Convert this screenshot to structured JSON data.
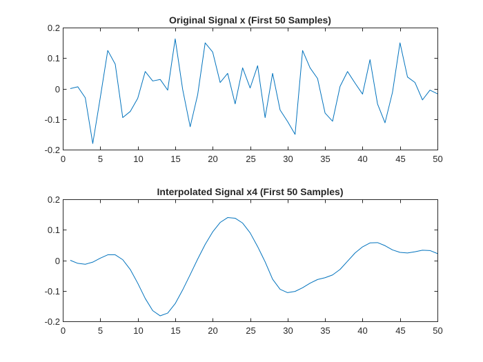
{
  "chart_data": [
    {
      "type": "line",
      "title": "Original Signal x (First 50 Samples)",
      "xlabel": "",
      "ylabel": "",
      "xlim": [
        0,
        50
      ],
      "ylim": [
        -0.2,
        0.2
      ],
      "xticks": [
        0,
        5,
        10,
        15,
        20,
        25,
        30,
        35,
        40,
        45,
        50
      ],
      "yticks": [
        -0.2,
        -0.1,
        0,
        0.1,
        0.2
      ],
      "ytick_labels": [
        "-0.2",
        "-0.1",
        "0",
        "0.1",
        "0.2"
      ],
      "grid": false,
      "color": "#0072BD",
      "series": [
        {
          "x": [
            1,
            2,
            3,
            4,
            5,
            6,
            7,
            8,
            9,
            10,
            11,
            12,
            13,
            14,
            15,
            16,
            17,
            18,
            19,
            20,
            21,
            22,
            23,
            24,
            25,
            26,
            27,
            28,
            29,
            30,
            31,
            32,
            33,
            34,
            35,
            36,
            37,
            38,
            39,
            40,
            41,
            42,
            43,
            44,
            45,
            46,
            47,
            48,
            49,
            50
          ],
          "values": [
            0.0,
            0.006,
            -0.03,
            -0.18,
            -0.03,
            0.125,
            0.08,
            -0.095,
            -0.075,
            -0.032,
            0.056,
            0.025,
            0.03,
            -0.005,
            0.163,
            -0.003,
            -0.125,
            -0.02,
            0.15,
            0.12,
            0.02,
            0.05,
            -0.05,
            0.068,
            0.002,
            0.075,
            -0.095,
            0.05,
            -0.07,
            -0.108,
            -0.15,
            0.125,
            0.068,
            0.033,
            -0.08,
            -0.107,
            0.007,
            0.056,
            0.018,
            -0.018,
            0.095,
            -0.05,
            -0.112,
            -0.012,
            0.15,
            0.038,
            0.02,
            -0.037,
            -0.005,
            -0.017
          ]
        }
      ]
    },
    {
      "type": "line",
      "title": "Interpolated Signal x4 (First 50 Samples)",
      "xlabel": "",
      "ylabel": "",
      "xlim": [
        0,
        50
      ],
      "ylim": [
        -0.2,
        0.2
      ],
      "xticks": [
        0,
        5,
        10,
        15,
        20,
        25,
        30,
        35,
        40,
        45,
        50
      ],
      "yticks": [
        -0.2,
        -0.1,
        0,
        0.1,
        0.2
      ],
      "ytick_labels": [
        "-0.2",
        "-0.1",
        "0",
        "0.1",
        "0.2"
      ],
      "grid": false,
      "color": "#0072BD",
      "series": [
        {
          "x": [
            1,
            2,
            3,
            4,
            5,
            6,
            7,
            8,
            9,
            10,
            11,
            12,
            13,
            14,
            15,
            16,
            17,
            18,
            19,
            20,
            21,
            22,
            23,
            24,
            25,
            26,
            27,
            28,
            29,
            30,
            31,
            32,
            33,
            34,
            35,
            36,
            37,
            38,
            39,
            40,
            41,
            42,
            43,
            44,
            45,
            46,
            47,
            48,
            49,
            50
          ],
          "values": [
            0.0,
            -0.01,
            -0.013,
            -0.006,
            0.007,
            0.018,
            0.018,
            0.002,
            -0.03,
            -0.075,
            -0.125,
            -0.165,
            -0.182,
            -0.173,
            -0.142,
            -0.097,
            -0.047,
            0.004,
            0.052,
            0.093,
            0.124,
            0.14,
            0.138,
            0.122,
            0.09,
            0.045,
            -0.005,
            -0.062,
            -0.095,
            -0.106,
            -0.102,
            -0.09,
            -0.075,
            -0.063,
            -0.057,
            -0.048,
            -0.03,
            -0.003,
            0.024,
            0.044,
            0.057,
            0.058,
            0.048,
            0.034,
            0.026,
            0.024,
            0.028,
            0.033,
            0.032,
            0.022
          ]
        }
      ]
    }
  ]
}
